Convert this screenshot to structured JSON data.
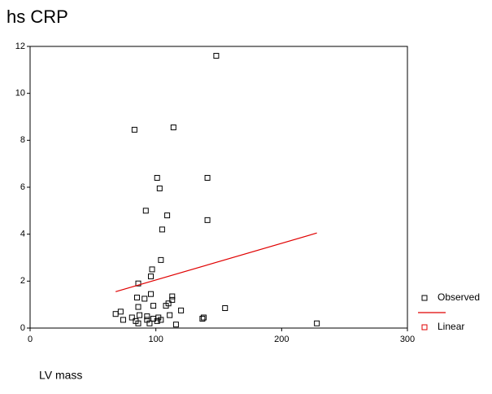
{
  "chart_data": {
    "type": "scatter",
    "title": "hs CRP",
    "x_label": "LV mass",
    "xlim": [
      0,
      300
    ],
    "xticks": [
      0,
      100,
      200,
      300
    ],
    "ylim": [
      0,
      12
    ],
    "yticks": [
      0,
      2,
      4,
      6,
      8,
      10,
      12
    ],
    "series": [
      {
        "name": "Observed",
        "type": "scatter",
        "color": "#000000",
        "x": [
          148,
          83,
          114,
          101,
          141,
          103,
          92,
          109,
          141,
          105,
          104,
          97,
          96,
          86,
          85,
          91,
          96,
          113,
          113,
          155,
          120,
          110,
          108,
          98,
          86,
          72,
          68,
          74,
          81,
          84,
          87,
          93,
          93,
          95,
          86,
          98,
          101,
          102,
          104,
          111,
          116,
          137,
          138,
          228
        ],
        "values": [
          11.6,
          8.45,
          8.55,
          6.4,
          6.4,
          5.95,
          5.0,
          4.8,
          4.6,
          4.2,
          2.9,
          2.5,
          2.2,
          1.9,
          1.3,
          1.25,
          1.45,
          1.35,
          1.2,
          0.85,
          0.75,
          1.05,
          0.95,
          0.95,
          0.9,
          0.7,
          0.6,
          0.35,
          0.45,
          0.3,
          0.55,
          0.5,
          0.35,
          0.2,
          0.2,
          0.4,
          0.3,
          0.45,
          0.35,
          0.55,
          0.15,
          0.4,
          0.45,
          0.2
        ]
      },
      {
        "name": "Linear",
        "type": "line",
        "color": "#e00000",
        "x": [
          68,
          228
        ],
        "values": [
          1.55,
          4.05
        ]
      }
    ]
  }
}
